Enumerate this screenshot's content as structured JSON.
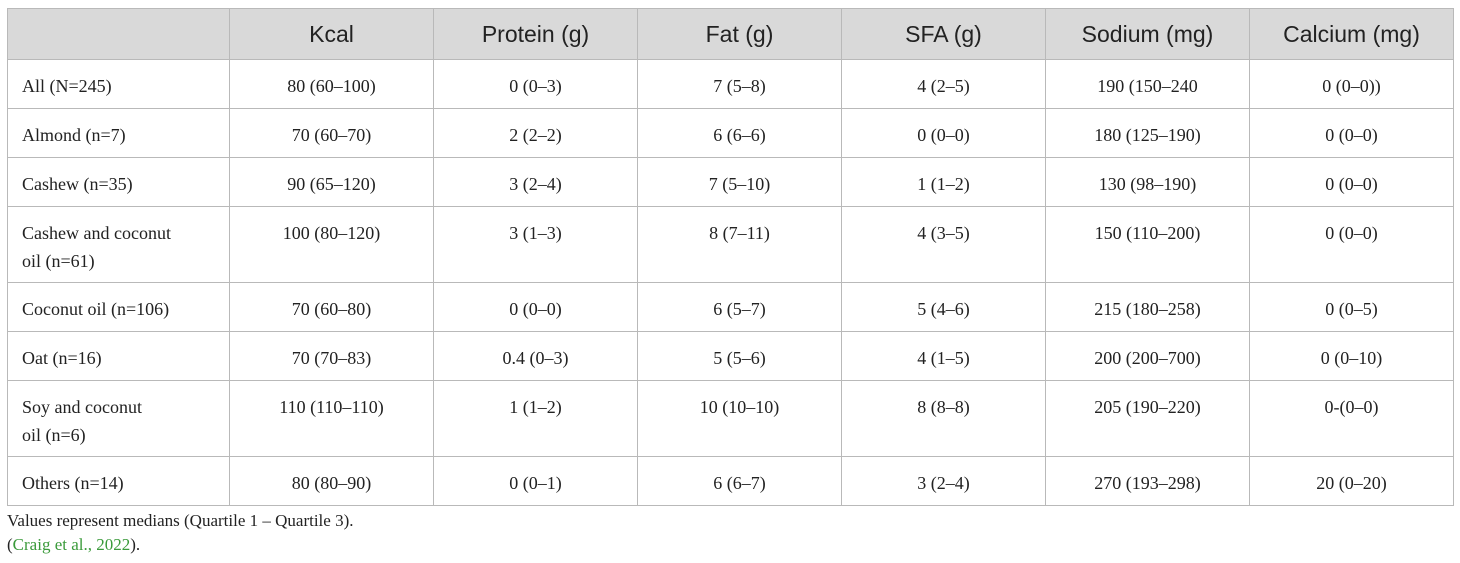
{
  "table": {
    "headers": [
      "",
      "Kcal",
      "Protein (g)",
      "Fat (g)",
      "SFA (g)",
      "Sodium (mg)",
      "Calcium (mg)"
    ],
    "rows": [
      {
        "name": "All (N=245)",
        "values": [
          "80 (60–100)",
          "0 (0–3)",
          "7 (5–8)",
          "4 (2–5)",
          "190 (150–240",
          "0 (0–0))"
        ]
      },
      {
        "name": "Almond (n=7)",
        "values": [
          "70 (60–70)",
          "2 (2–2)",
          "6 (6–6)",
          "0 (0–0)",
          "180 (125–190)",
          "0 (0–0)"
        ]
      },
      {
        "name": "Cashew (n=35)",
        "values": [
          "90 (65–120)",
          "3 (2–4)",
          "7 (5–10)",
          "1 (1–2)",
          "130 (98–190)",
          "0 (0–0)"
        ]
      },
      {
        "name_lines": [
          "Cashew and coconut",
          "oil (n=61)"
        ],
        "values": [
          "100 (80–120)",
          "3 (1–3)",
          "8 (7–11)",
          "4 (3–5)",
          "150 (110–200)",
          "0 (0–0)"
        ]
      },
      {
        "name": "Coconut oil (n=106)",
        "values": [
          "70 (60–80)",
          "0 (0–0)",
          "6 (5–7)",
          "5 (4–6)",
          "215 (180–258)",
          "0 (0–5)"
        ]
      },
      {
        "name": "Oat (n=16)",
        "values": [
          "70 (70–83)",
          "0.4 (0–3)",
          "5 (5–6)",
          "4 (1–5)",
          "200 (200–700)",
          "0 (0–10)"
        ]
      },
      {
        "name_lines": [
          "Soy and coconut",
          "oil (n=6)"
        ],
        "values": [
          "110 (110–110)",
          "1 (1–2)",
          "10 (10–10)",
          "8 (8–8)",
          "205 (190–220)",
          "0-(0–0)"
        ]
      },
      {
        "name": "Others (n=14)",
        "values": [
          "80 (80–90)",
          "0 (0–1)",
          "6 (6–7)",
          "3 (2–4)",
          "270 (193–298)",
          "20 (0–20)"
        ]
      }
    ]
  },
  "notes": {
    "values_note": "Values represent medians (Quartile 1 – Quartile 3).",
    "cite_open": "(",
    "cite_link": "Craig et al., 2022",
    "cite_close": ")."
  }
}
